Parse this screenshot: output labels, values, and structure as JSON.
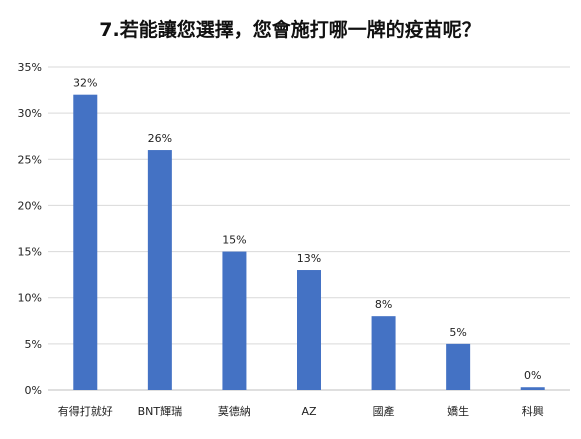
{
  "chart_data": {
    "type": "bar",
    "title": "7.若能讓您選擇，您會施打哪一牌的疫苗呢？",
    "categories": [
      "有得打就好",
      "BNT輝瑞",
      "莫德納",
      "AZ",
      "國產",
      "嬌生",
      "科興"
    ],
    "values": [
      32,
      26,
      15,
      13,
      8,
      5,
      0.3
    ],
    "data_labels": [
      "32%",
      "26%",
      "15%",
      "13%",
      "8%",
      "5%",
      "0%"
    ],
    "ylim": [
      0,
      35
    ],
    "yticks": [
      "0%",
      "5%",
      "10%",
      "15%",
      "20%",
      "25%",
      "30%",
      "35%"
    ],
    "ytick_values": [
      0,
      5,
      10,
      15,
      20,
      25,
      30,
      35
    ],
    "xlabel": "",
    "ylabel": "",
    "grid": true,
    "bar_color": "#4472C4",
    "grid_color": "#D9D9D9",
    "axis_color": "#BFBFBF"
  }
}
